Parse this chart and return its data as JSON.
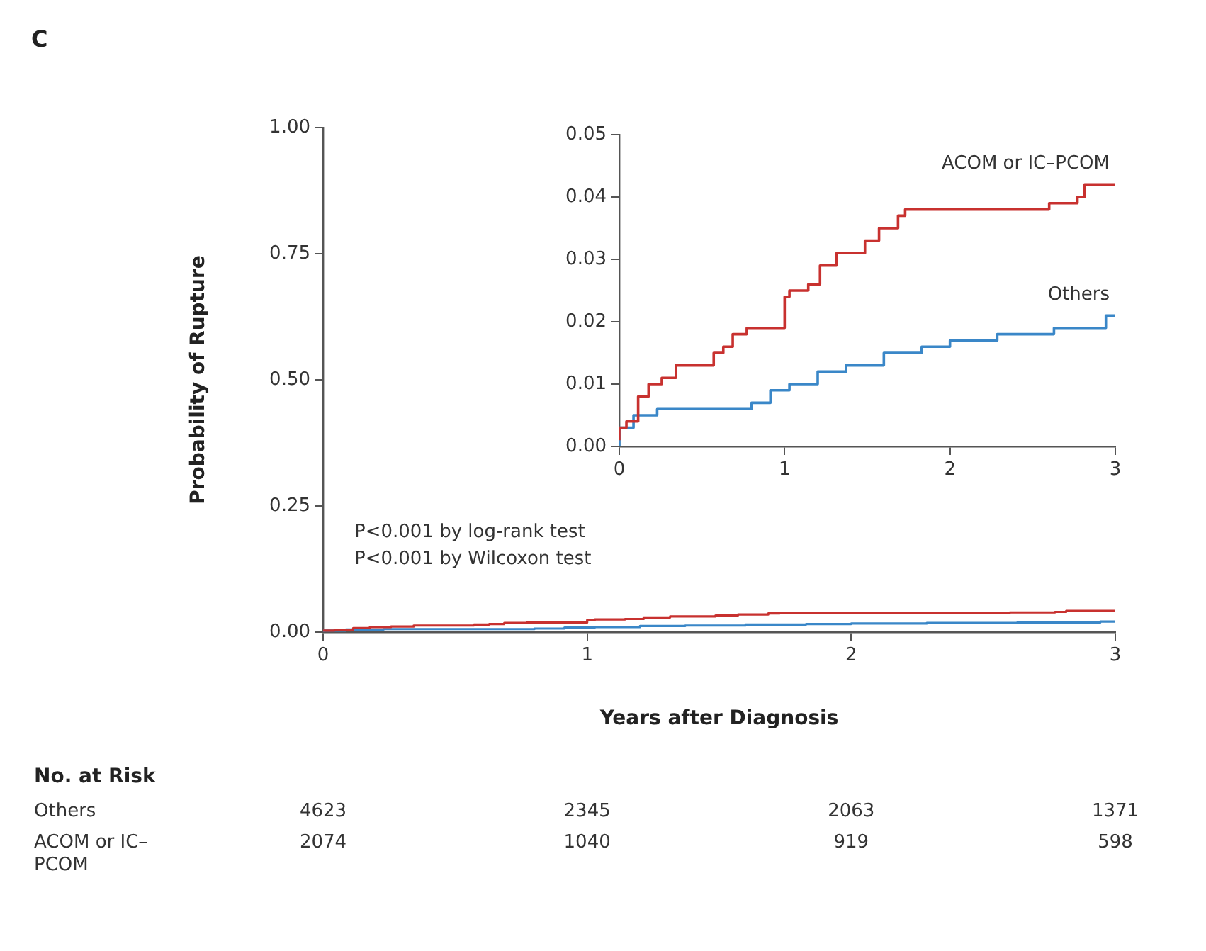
{
  "chart_data": [
    {
      "type": "step",
      "xlabel": "Years after Diagnosis",
      "ylabel": "Probability of Rupture",
      "x": [
        0,
        0.043,
        0.114,
        0.177,
        0.257,
        0.343,
        0.4,
        0.571,
        0.629,
        0.686,
        0.771,
        0.829,
        1.0,
        1.029,
        1.143,
        1.214,
        1.314,
        1.386,
        1.486,
        1.571,
        1.686,
        1.729,
        2.286,
        2.6,
        2.771,
        2.814,
        2.857,
        3.0
      ],
      "series": [
        {
          "color": "#c8312f",
          "values": [
            0.001,
            0.003,
            0.004,
            0.008,
            0.01,
            0.011,
            0.013,
            0.013,
            0.015,
            0.016,
            0.018,
            0.019,
            0.019,
            0.024,
            0.025,
            0.026,
            0.029,
            0.031,
            0.031,
            0.033,
            0.035,
            0.037,
            0.038,
            0.038,
            0.039,
            0.04,
            0.042,
            0.042
          ]
        },
        {
          "color": "#3a87c8",
          "x": [
            0,
            0.086,
            0.171,
            0.229,
            0.4,
            0.514,
            0.8,
            0.914,
            1.029,
            1.2,
            1.371,
            1.6,
            1.829,
            2.0,
            2.286,
            2.629,
            2.943,
            3.0
          ],
          "values": [
            0,
            0.003,
            0.005,
            0.005,
            0.006,
            0.006,
            0.006,
            0.007,
            0.009,
            0.01,
            0.012,
            0.013,
            0.015,
            0.016,
            0.017,
            0.018,
            0.019,
            0.021
          ]
        }
      ],
      "xlim": [
        0,
        3
      ],
      "xticks": [
        0,
        1,
        2,
        3
      ],
      "ylim": [
        0,
        1
      ],
      "yticks": [
        {
          "value": 0,
          "label": "0.00"
        },
        0.25,
        {
          "value": 0.5,
          "label": "0.50"
        },
        0.75,
        {
          "value": 1,
          "label": "1.00"
        }
      ],
      "legend": false,
      "grid": false,
      "annotations": [
        "P<0.001 by log-rank test",
        "P<0.001 by Wilcoxon test",
        "No. at Risk",
        "Others",
        "4623",
        "2345",
        "2063",
        "1371",
        "ACOM or IC–PCOM",
        "2074",
        "1040",
        "919",
        "598",
        "C"
      ]
    },
    {
      "type": "step",
      "x": [
        0,
        0.043,
        0.114,
        0.177,
        0.257,
        0.343,
        0.4,
        0.571,
        0.629,
        0.686,
        0.771,
        0.829,
        1.0,
        1.029,
        1.143,
        1.214,
        1.314,
        1.386,
        1.486,
        1.571,
        1.686,
        1.729,
        2.286,
        2.6,
        2.771,
        2.814,
        2.857,
        3.0
      ],
      "series": [
        {
          "name": "ACOM or IC–PCOM",
          "color": "#c8312f",
          "values": [
            0.001,
            0.003,
            0.004,
            0.008,
            0.01,
            0.011,
            0.013,
            0.013,
            0.015,
            0.016,
            0.018,
            0.019,
            0.019,
            0.024,
            0.025,
            0.026,
            0.029,
            0.031,
            0.031,
            0.033,
            0.035,
            0.037,
            0.038,
            0.038,
            0.039,
            0.04,
            0.042,
            0.042
          ]
        },
        {
          "name": "Others",
          "color": "#3a87c8",
          "x": [
            0,
            0.086,
            0.171,
            0.229,
            0.4,
            0.514,
            0.8,
            0.914,
            1.029,
            1.2,
            1.371,
            1.6,
            1.829,
            2.0,
            2.286,
            2.629,
            2.943,
            3.0
          ],
          "values": [
            0,
            0.003,
            0.005,
            0.005,
            0.006,
            0.006,
            0.006,
            0.007,
            0.009,
            0.01,
            0.012,
            0.013,
            0.015,
            0.016,
            0.017,
            0.018,
            0.019,
            0.021
          ]
        }
      ],
      "xlim": [
        0,
        3
      ],
      "xticks": [
        0,
        1,
        2,
        3
      ],
      "ylim": [
        0,
        0.05
      ],
      "yticks": [
        {
          "value": 0,
          "label": "0.00"
        },
        0.01,
        0.02,
        0.03,
        0.04,
        0.05
      ],
      "legend": false,
      "grid": false
    }
  ]
}
